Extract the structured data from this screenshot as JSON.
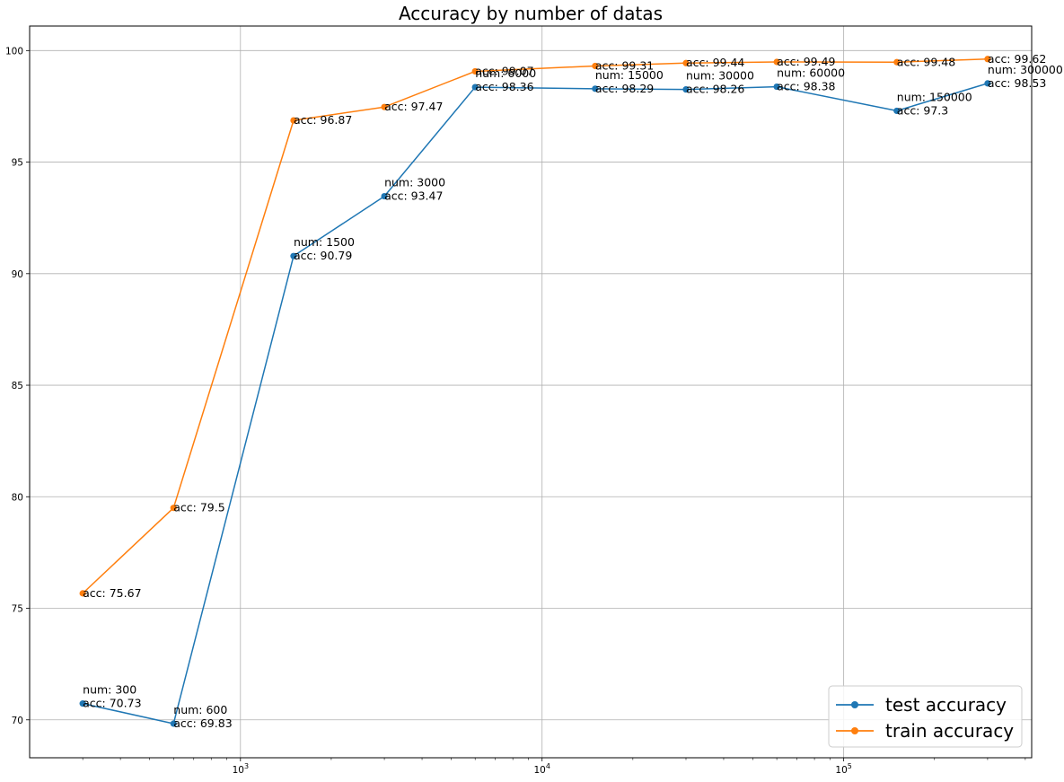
{
  "chart_data": {
    "type": "line",
    "title": "Accuracy by number of datas",
    "xlabel": "",
    "ylabel": "",
    "x_scale": "log",
    "xlim": [
      200,
      420000
    ],
    "ylim": [
      68.3,
      101.1
    ],
    "grid": true,
    "legend_position": "lower right",
    "x": [
      300,
      600,
      1500,
      3000,
      6000,
      15000,
      30000,
      60000,
      150000,
      300000
    ],
    "x_ticks": [
      {
        "value": 1000,
        "base": "10",
        "exp": "3"
      },
      {
        "value": 10000,
        "base": "10",
        "exp": "4"
      },
      {
        "value": 100000,
        "base": "10",
        "exp": "5"
      }
    ],
    "y_ticks": [
      70,
      75,
      80,
      85,
      90,
      95,
      100
    ],
    "series": [
      {
        "name": "test accuracy",
        "color": "#1f77b4",
        "values": [
          70.73,
          69.83,
          90.79,
          93.47,
          98.36,
          98.29,
          98.26,
          98.38,
          97.3,
          98.53
        ],
        "labels": [
          [
            "num: 300",
            "acc: 70.73"
          ],
          [
            "num: 600",
            "acc: 69.83"
          ],
          [
            "num: 1500",
            "acc: 90.79"
          ],
          [
            "num: 3000",
            "acc: 93.47"
          ],
          [
            "num: 6000",
            "acc: 98.36"
          ],
          [
            "num: 15000",
            "acc: 98.29"
          ],
          [
            "num: 30000",
            "acc: 98.26"
          ],
          [
            "num: 60000",
            "acc: 98.38"
          ],
          [
            "num: 150000",
            "acc: 97.3"
          ],
          [
            "num: 300000",
            "acc: 98.53"
          ]
        ]
      },
      {
        "name": "train accuracy",
        "color": "#ff7f0e",
        "values": [
          75.67,
          79.5,
          96.87,
          97.47,
          99.07,
          99.31,
          99.44,
          99.49,
          99.48,
          99.62
        ],
        "labels": [
          [
            "acc: 75.67"
          ],
          [
            "acc: 79.5"
          ],
          [
            "acc: 96.87"
          ],
          [
            "acc: 97.47"
          ],
          [
            "acc: 99.07"
          ],
          [
            "acc: 99.31"
          ],
          [
            "acc: 99.44"
          ],
          [
            "acc: 99.49"
          ],
          [
            "acc: 99.48"
          ],
          [
            "acc: 99.62"
          ]
        ]
      }
    ]
  }
}
